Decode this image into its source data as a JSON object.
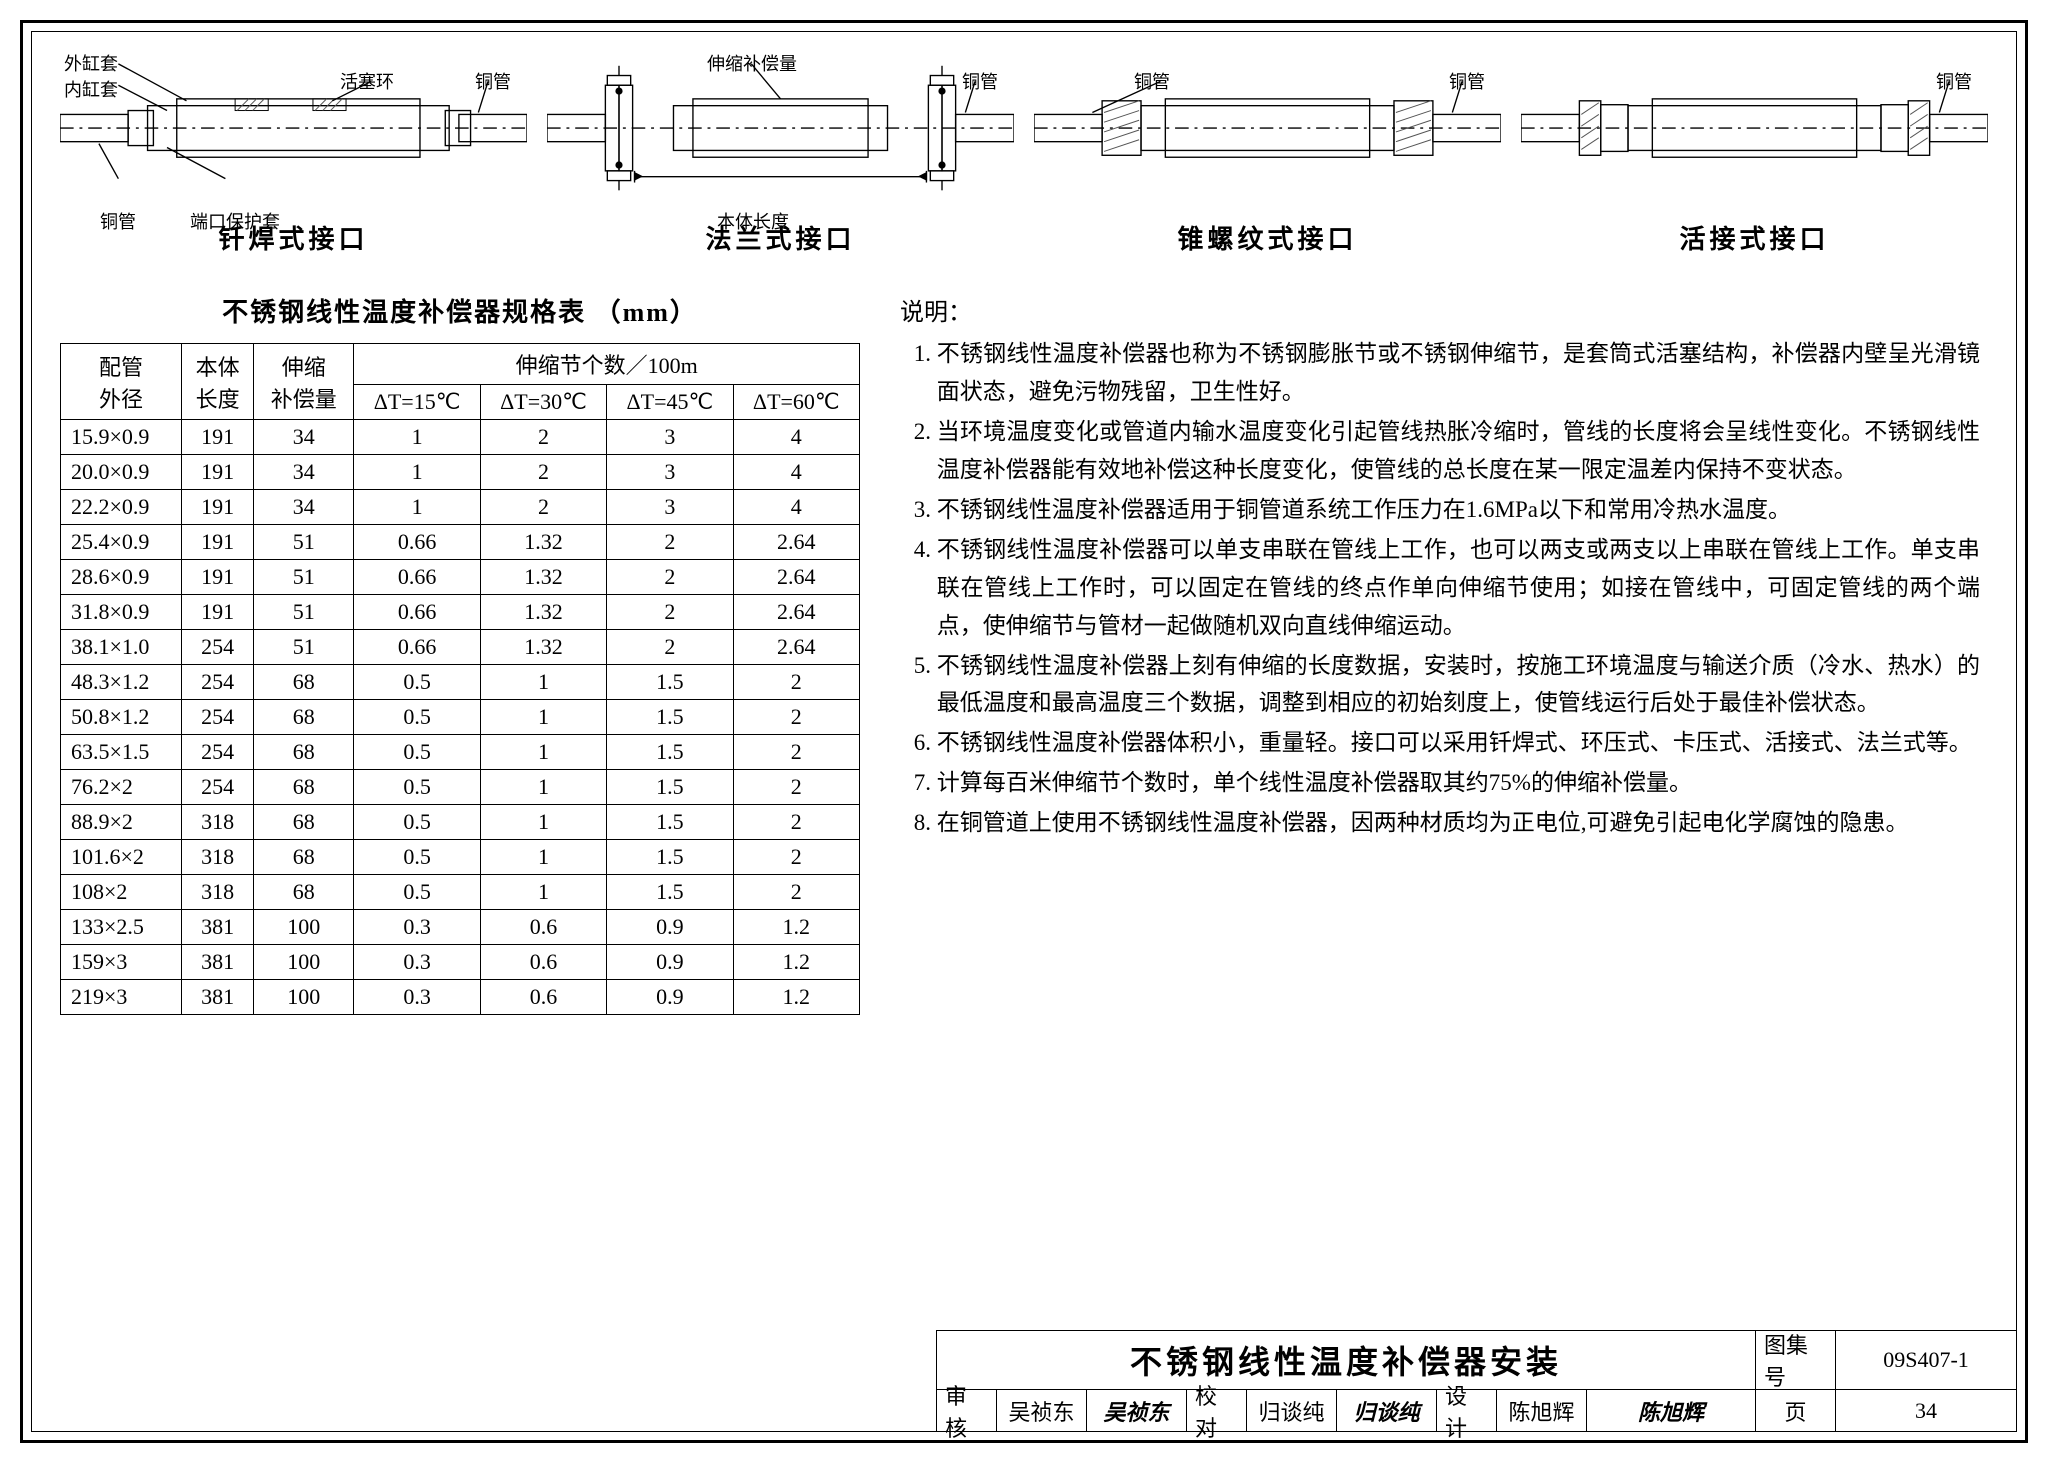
{
  "diagrams": [
    {
      "title": "钎焊式接口",
      "labels": {
        "outer_sleeve": "外缸套",
        "inner_sleeve": "内缸套",
        "piston_ring": "活塞环",
        "pipe": "铜管",
        "end_cover": "端口保护套"
      }
    },
    {
      "title": "法兰式接口",
      "labels": {
        "expansion_amount": "伸缩补偿量",
        "pipe": "铜管",
        "body_length": "本体长度"
      }
    },
    {
      "title": "锥螺纹式接口",
      "labels": {
        "pipe": "铜管"
      }
    },
    {
      "title": "活接式接口",
      "labels": {
        "pipe": "铜管"
      }
    }
  ],
  "table": {
    "title": "不锈钢线性温度补偿器规格表 （mm）",
    "header": {
      "col1": "配管\n外径",
      "col2": "本体\n长度",
      "col3": "伸缩\n补偿量",
      "col4_group": "伸缩节个数／100m",
      "sub": [
        "ΔT=15℃",
        "ΔT=30℃",
        "ΔT=45℃",
        "ΔT=60℃"
      ]
    },
    "rows": [
      [
        "15.9×0.9",
        "191",
        "34",
        "1",
        "2",
        "3",
        "4"
      ],
      [
        "20.0×0.9",
        "191",
        "34",
        "1",
        "2",
        "3",
        "4"
      ],
      [
        "22.2×0.9",
        "191",
        "34",
        "1",
        "2",
        "3",
        "4"
      ],
      [
        "25.4×0.9",
        "191",
        "51",
        "0.66",
        "1.32",
        "2",
        "2.64"
      ],
      [
        "28.6×0.9",
        "191",
        "51",
        "0.66",
        "1.32",
        "2",
        "2.64"
      ],
      [
        "31.8×0.9",
        "191",
        "51",
        "0.66",
        "1.32",
        "2",
        "2.64"
      ],
      [
        "38.1×1.0",
        "254",
        "51",
        "0.66",
        "1.32",
        "2",
        "2.64"
      ],
      [
        "48.3×1.2",
        "254",
        "68",
        "0.5",
        "1",
        "1.5",
        "2"
      ],
      [
        "50.8×1.2",
        "254",
        "68",
        "0.5",
        "1",
        "1.5",
        "2"
      ],
      [
        "63.5×1.5",
        "254",
        "68",
        "0.5",
        "1",
        "1.5",
        "2"
      ],
      [
        "76.2×2",
        "254",
        "68",
        "0.5",
        "1",
        "1.5",
        "2"
      ],
      [
        "88.9×2",
        "318",
        "68",
        "0.5",
        "1",
        "1.5",
        "2"
      ],
      [
        "101.6×2",
        "318",
        "68",
        "0.5",
        "1",
        "1.5",
        "2"
      ],
      [
        "108×2",
        "318",
        "68",
        "0.5",
        "1",
        "1.5",
        "2"
      ],
      [
        "133×2.5",
        "381",
        "100",
        "0.3",
        "0.6",
        "0.9",
        "1.2"
      ],
      [
        "159×3",
        "381",
        "100",
        "0.3",
        "0.6",
        "0.9",
        "1.2"
      ],
      [
        "219×3",
        "381",
        "100",
        "0.3",
        "0.6",
        "0.9",
        "1.2"
      ]
    ]
  },
  "notes": {
    "title": "说明：",
    "items": [
      "不锈钢线性温度补偿器也称为不锈钢膨胀节或不锈钢伸缩节，是套筒式活塞结构，补偿器内壁呈光滑镜面状态，避免污物残留，卫生性好。",
      "当环境温度变化或管道内输水温度变化引起管线热胀冷缩时，管线的长度将会呈线性变化。不锈钢线性温度补偿器能有效地补偿这种长度变化，使管线的总长度在某一限定温差内保持不变状态。",
      "不锈钢线性温度补偿器适用于铜管道系统工作压力在1.6MPa以下和常用冷热水温度。",
      "不锈钢线性温度补偿器可以单支串联在管线上工作，也可以两支或两支以上串联在管线上工作。单支串联在管线上工作时，可以固定在管线的终点作单向伸缩节使用；如接在管线中，可固定管线的两个端点，使伸缩节与管材一起做随机双向直线伸缩运动。",
      "不锈钢线性温度补偿器上刻有伸缩的长度数据，安装时，按施工环境温度与输送介质（冷水、热水）的最低温度和最高温度三个数据，调整到相应的初始刻度上，使管线运行后处于最佳补偿状态。",
      "不锈钢线性温度补偿器体积小，重量轻。接口可以采用钎焊式、环压式、卡压式、活接式、法兰式等。",
      "计算每百米伸缩节个数时，单个线性温度补偿器取其约75%的伸缩补偿量。",
      "在铜管道上使用不锈钢线性温度补偿器，因两种材质均为正电位,可避免引起电化学腐蚀的隐患。"
    ]
  },
  "titleblock": {
    "main": "不锈钢线性温度补偿器安装",
    "series_label": "图集号",
    "series_value": "09S407-1",
    "review_label": "审核",
    "review_name": "吴祯东",
    "review_sig": "吴祯东",
    "check_label": "校对",
    "check_name": "归谈纯",
    "check_sig": "归谈纯",
    "design_label": "设计",
    "design_name": "陈旭辉",
    "design_sig": "陈旭辉",
    "page_label": "页",
    "page_value": "34"
  },
  "colors": {
    "stroke": "#000000",
    "hatch": "#555555",
    "bg": "#ffffff"
  }
}
